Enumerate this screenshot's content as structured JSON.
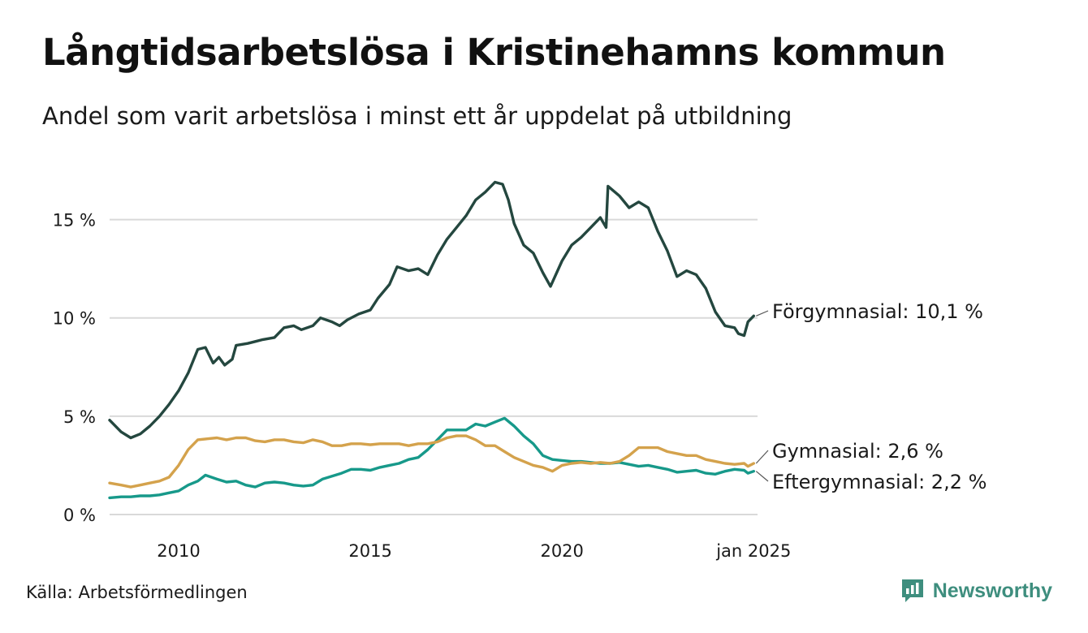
{
  "header": {
    "title": "Långtidsarbetslösa i Kristinehamns kommun",
    "subtitle": "Andel som varit arbetslösa i minst ett år uppdelat på utbildning"
  },
  "footer": {
    "source": "Källa: Arbetsförmedlingen",
    "brand": "Newsworthy"
  },
  "colors": {
    "forgymnasial": "#24473f",
    "gymnasial": "#d4a24c",
    "eftergymnasial": "#17998a",
    "grid": "#d9d9d9",
    "brand": "#3e8e7e"
  },
  "chart_data": {
    "type": "line",
    "xlim": [
      2008.2,
      2025.1
    ],
    "ylim": [
      0,
      17.5
    ],
    "yticks": [
      0,
      5,
      10,
      15
    ],
    "ytick_labels": [
      "0 %",
      "5 %",
      "10 %",
      "15 %"
    ],
    "xticks": [
      2010,
      2015,
      2020,
      2025
    ],
    "xtick_labels": [
      "2010",
      "2015",
      "2020",
      "jan 2025"
    ],
    "grid": true,
    "series": [
      {
        "name": "Förgymnasial",
        "label": "Förgymnasial: 10,1 %",
        "color": "#24473f",
        "points": [
          [
            2008.2,
            4.8
          ],
          [
            2008.5,
            4.2
          ],
          [
            2008.75,
            3.9
          ],
          [
            2009.0,
            4.1
          ],
          [
            2009.25,
            4.5
          ],
          [
            2009.5,
            5.0
          ],
          [
            2009.75,
            5.6
          ],
          [
            2010.0,
            6.3
          ],
          [
            2010.25,
            7.2
          ],
          [
            2010.5,
            8.4
          ],
          [
            2010.7,
            8.5
          ],
          [
            2010.9,
            7.7
          ],
          [
            2011.05,
            8.0
          ],
          [
            2011.2,
            7.6
          ],
          [
            2011.4,
            7.9
          ],
          [
            2011.5,
            8.6
          ],
          [
            2011.8,
            8.7
          ],
          [
            2012.0,
            8.8
          ],
          [
            2012.2,
            8.9
          ],
          [
            2012.5,
            9.0
          ],
          [
            2012.75,
            9.5
          ],
          [
            2013.0,
            9.6
          ],
          [
            2013.2,
            9.4
          ],
          [
            2013.5,
            9.6
          ],
          [
            2013.7,
            10.0
          ],
          [
            2014.0,
            9.8
          ],
          [
            2014.2,
            9.6
          ],
          [
            2014.4,
            9.9
          ],
          [
            2014.7,
            10.2
          ],
          [
            2015.0,
            10.4
          ],
          [
            2015.2,
            11.0
          ],
          [
            2015.5,
            11.7
          ],
          [
            2015.7,
            12.6
          ],
          [
            2016.0,
            12.4
          ],
          [
            2016.25,
            12.5
          ],
          [
            2016.5,
            12.2
          ],
          [
            2016.75,
            13.2
          ],
          [
            2017.0,
            14.0
          ],
          [
            2017.25,
            14.6
          ],
          [
            2017.5,
            15.2
          ],
          [
            2017.75,
            16.0
          ],
          [
            2018.0,
            16.4
          ],
          [
            2018.25,
            16.9
          ],
          [
            2018.45,
            16.8
          ],
          [
            2018.6,
            16.0
          ],
          [
            2018.75,
            14.8
          ],
          [
            2019.0,
            13.7
          ],
          [
            2019.25,
            13.3
          ],
          [
            2019.5,
            12.3
          ],
          [
            2019.7,
            11.6
          ],
          [
            2020.0,
            12.9
          ],
          [
            2020.25,
            13.7
          ],
          [
            2020.5,
            14.1
          ],
          [
            2020.75,
            14.6
          ],
          [
            2021.0,
            15.1
          ],
          [
            2021.15,
            14.6
          ],
          [
            2021.2,
            16.7
          ],
          [
            2021.5,
            16.2
          ],
          [
            2021.75,
            15.6
          ],
          [
            2022.0,
            15.9
          ],
          [
            2022.25,
            15.6
          ],
          [
            2022.5,
            14.4
          ],
          [
            2022.75,
            13.4
          ],
          [
            2023.0,
            12.1
          ],
          [
            2023.25,
            12.4
          ],
          [
            2023.5,
            12.2
          ],
          [
            2023.75,
            11.5
          ],
          [
            2024.0,
            10.3
          ],
          [
            2024.25,
            9.6
          ],
          [
            2024.5,
            9.5
          ],
          [
            2024.6,
            9.2
          ],
          [
            2024.75,
            9.1
          ],
          [
            2024.85,
            9.8
          ],
          [
            2025.0,
            10.1
          ]
        ]
      },
      {
        "name": "Gymnasial",
        "label": "Gymnasial:  2,6 %",
        "color": "#d4a24c",
        "points": [
          [
            2008.2,
            1.6
          ],
          [
            2008.5,
            1.5
          ],
          [
            2008.75,
            1.4
          ],
          [
            2009.0,
            1.5
          ],
          [
            2009.25,
            1.6
          ],
          [
            2009.5,
            1.7
          ],
          [
            2009.75,
            1.9
          ],
          [
            2010.0,
            2.5
          ],
          [
            2010.25,
            3.3
          ],
          [
            2010.5,
            3.8
          ],
          [
            2010.75,
            3.85
          ],
          [
            2011.0,
            3.9
          ],
          [
            2011.25,
            3.8
          ],
          [
            2011.5,
            3.9
          ],
          [
            2011.75,
            3.9
          ],
          [
            2012.0,
            3.75
          ],
          [
            2012.25,
            3.7
          ],
          [
            2012.5,
            3.8
          ],
          [
            2012.75,
            3.8
          ],
          [
            2013.0,
            3.7
          ],
          [
            2013.25,
            3.65
          ],
          [
            2013.5,
            3.8
          ],
          [
            2013.75,
            3.7
          ],
          [
            2014.0,
            3.5
          ],
          [
            2014.25,
            3.5
          ],
          [
            2014.5,
            3.6
          ],
          [
            2014.75,
            3.6
          ],
          [
            2015.0,
            3.55
          ],
          [
            2015.25,
            3.6
          ],
          [
            2015.5,
            3.6
          ],
          [
            2015.75,
            3.6
          ],
          [
            2016.0,
            3.5
          ],
          [
            2016.25,
            3.6
          ],
          [
            2016.5,
            3.6
          ],
          [
            2016.75,
            3.7
          ],
          [
            2017.0,
            3.9
          ],
          [
            2017.25,
            4.0
          ],
          [
            2017.5,
            4.0
          ],
          [
            2017.75,
            3.8
          ],
          [
            2018.0,
            3.5
          ],
          [
            2018.25,
            3.5
          ],
          [
            2018.5,
            3.2
          ],
          [
            2018.75,
            2.9
          ],
          [
            2019.0,
            2.7
          ],
          [
            2019.25,
            2.5
          ],
          [
            2019.5,
            2.4
          ],
          [
            2019.75,
            2.2
          ],
          [
            2020.0,
            2.5
          ],
          [
            2020.25,
            2.6
          ],
          [
            2020.5,
            2.65
          ],
          [
            2020.75,
            2.6
          ],
          [
            2021.0,
            2.65
          ],
          [
            2021.25,
            2.6
          ],
          [
            2021.5,
            2.7
          ],
          [
            2021.75,
            3.0
          ],
          [
            2022.0,
            3.4
          ],
          [
            2022.25,
            3.4
          ],
          [
            2022.5,
            3.4
          ],
          [
            2022.75,
            3.2
          ],
          [
            2023.0,
            3.1
          ],
          [
            2023.25,
            3.0
          ],
          [
            2023.5,
            3.0
          ],
          [
            2023.75,
            2.8
          ],
          [
            2024.0,
            2.7
          ],
          [
            2024.25,
            2.6
          ],
          [
            2024.5,
            2.55
          ],
          [
            2024.75,
            2.6
          ],
          [
            2024.85,
            2.45
          ],
          [
            2025.0,
            2.6
          ]
        ]
      },
      {
        "name": "Eftergymnasial",
        "label": "Eftergymnasial:  2,2 %",
        "color": "#17998a",
        "points": [
          [
            2008.2,
            0.85
          ],
          [
            2008.5,
            0.9
          ],
          [
            2008.75,
            0.9
          ],
          [
            2009.0,
            0.95
          ],
          [
            2009.25,
            0.95
          ],
          [
            2009.5,
            1.0
          ],
          [
            2009.75,
            1.1
          ],
          [
            2010.0,
            1.2
          ],
          [
            2010.25,
            1.5
          ],
          [
            2010.5,
            1.7
          ],
          [
            2010.7,
            2.0
          ],
          [
            2011.0,
            1.8
          ],
          [
            2011.25,
            1.65
          ],
          [
            2011.5,
            1.7
          ],
          [
            2011.75,
            1.5
          ],
          [
            2012.0,
            1.4
          ],
          [
            2012.25,
            1.6
          ],
          [
            2012.5,
            1.65
          ],
          [
            2012.75,
            1.6
          ],
          [
            2013.0,
            1.5
          ],
          [
            2013.25,
            1.45
          ],
          [
            2013.5,
            1.5
          ],
          [
            2013.75,
            1.8
          ],
          [
            2014.0,
            1.95
          ],
          [
            2014.25,
            2.1
          ],
          [
            2014.5,
            2.3
          ],
          [
            2014.75,
            2.3
          ],
          [
            2015.0,
            2.25
          ],
          [
            2015.25,
            2.4
          ],
          [
            2015.5,
            2.5
          ],
          [
            2015.75,
            2.6
          ],
          [
            2016.0,
            2.8
          ],
          [
            2016.25,
            2.9
          ],
          [
            2016.5,
            3.3
          ],
          [
            2016.75,
            3.8
          ],
          [
            2017.0,
            4.3
          ],
          [
            2017.25,
            4.3
          ],
          [
            2017.5,
            4.3
          ],
          [
            2017.75,
            4.6
          ],
          [
            2018.0,
            4.5
          ],
          [
            2018.25,
            4.7
          ],
          [
            2018.5,
            4.9
          ],
          [
            2018.75,
            4.5
          ],
          [
            2019.0,
            4.0
          ],
          [
            2019.25,
            3.6
          ],
          [
            2019.5,
            3.0
          ],
          [
            2019.75,
            2.8
          ],
          [
            2020.0,
            2.75
          ],
          [
            2020.25,
            2.7
          ],
          [
            2020.5,
            2.7
          ],
          [
            2020.75,
            2.65
          ],
          [
            2021.0,
            2.6
          ],
          [
            2021.25,
            2.6
          ],
          [
            2021.5,
            2.65
          ],
          [
            2021.75,
            2.55
          ],
          [
            2022.0,
            2.45
          ],
          [
            2022.25,
            2.5
          ],
          [
            2022.5,
            2.4
          ],
          [
            2022.75,
            2.3
          ],
          [
            2023.0,
            2.15
          ],
          [
            2023.25,
            2.2
          ],
          [
            2023.5,
            2.25
          ],
          [
            2023.75,
            2.1
          ],
          [
            2024.0,
            2.05
          ],
          [
            2024.25,
            2.2
          ],
          [
            2024.5,
            2.3
          ],
          [
            2024.75,
            2.25
          ],
          [
            2024.85,
            2.1
          ],
          [
            2025.0,
            2.2
          ]
        ]
      }
    ]
  }
}
